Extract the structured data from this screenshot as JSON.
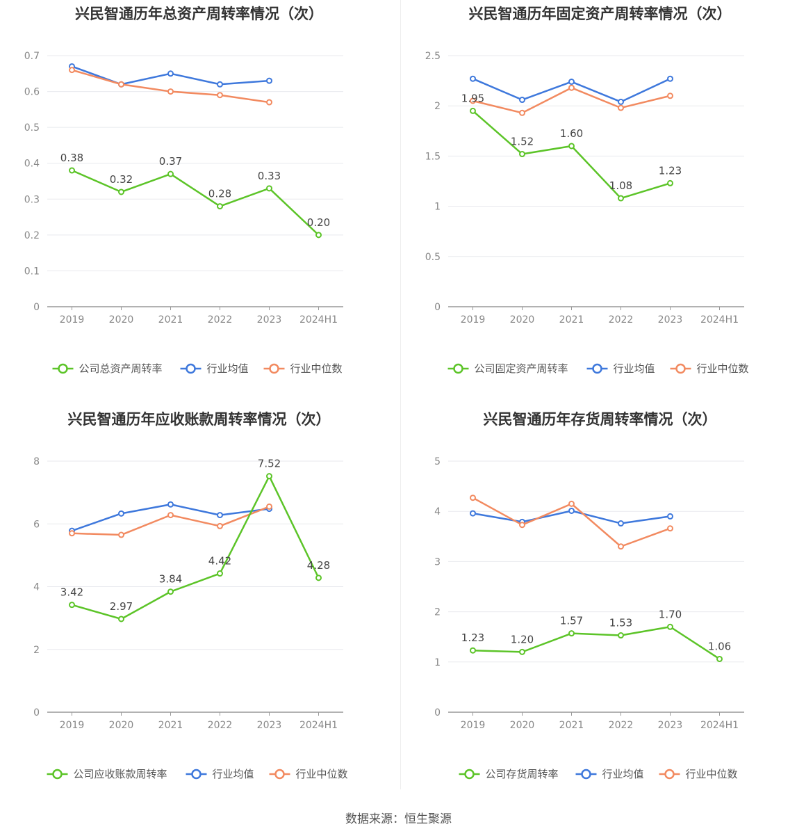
{
  "source": "数据来源：恒生聚源",
  "colors": {
    "company": "#5cc428",
    "mean": "#3e78dc",
    "median": "#f28a60",
    "grid": "#e8e9ee",
    "axis": "#999999",
    "tick": "#888888"
  },
  "chart_data": [
    {
      "type": "line",
      "title": "兴民智通历年总资产周转率情况（次）",
      "categories": [
        "2019",
        "2020",
        "2021",
        "2022",
        "2023",
        "2024H1"
      ],
      "ylim": [
        0,
        0.7
      ],
      "yticks": [
        "0",
        "0.1",
        "0.2",
        "0.3",
        "0.4",
        "0.5",
        "0.6",
        "0.7"
      ],
      "series": [
        {
          "name": "公司总资产周转率",
          "values": [
            0.38,
            0.32,
            0.37,
            0.28,
            0.33,
            0.2
          ],
          "labels": [
            "0.38",
            "0.32",
            "0.37",
            "0.28",
            "0.33",
            "0.20"
          ]
        },
        {
          "name": "行业均值",
          "values": [
            0.67,
            0.62,
            0.65,
            0.62,
            0.63,
            null
          ]
        },
        {
          "name": "行业中位数",
          "values": [
            0.66,
            0.62,
            0.6,
            0.59,
            0.57,
            null
          ]
        }
      ]
    },
    {
      "type": "line",
      "title": "兴民智通历年固定资产周转率情况（次）",
      "categories": [
        "2019",
        "2020",
        "2021",
        "2022",
        "2023",
        "2024H1"
      ],
      "ylim": [
        0,
        2.5
      ],
      "yticks": [
        "0",
        "0.5",
        "1",
        "1.5",
        "2",
        "2.5"
      ],
      "series": [
        {
          "name": "公司固定资产周转率",
          "values": [
            1.95,
            1.52,
            1.6,
            1.08,
            1.23,
            null
          ],
          "labels": [
            "1.95",
            "1.52",
            "1.60",
            "1.08",
            "1.23",
            ""
          ]
        },
        {
          "name": "行业均值",
          "values": [
            2.27,
            2.06,
            2.24,
            2.04,
            2.27,
            null
          ]
        },
        {
          "name": "行业中位数",
          "values": [
            2.05,
            1.93,
            2.18,
            1.98,
            2.1,
            null
          ]
        }
      ]
    },
    {
      "type": "line",
      "title": "兴民智通历年应收账款周转率情况（次）",
      "categories": [
        "2019",
        "2020",
        "2021",
        "2022",
        "2023",
        "2024H1"
      ],
      "ylim": [
        0,
        8
      ],
      "yticks": [
        "0",
        "2",
        "4",
        "6",
        "8"
      ],
      "series": [
        {
          "name": "公司应收账款周转率",
          "values": [
            3.42,
            2.97,
            3.84,
            4.42,
            7.52,
            4.28
          ],
          "labels": [
            "3.42",
            "2.97",
            "3.84",
            "4.42",
            "7.52",
            "4.28"
          ]
        },
        {
          "name": "行业均值",
          "values": [
            5.78,
            6.33,
            6.62,
            6.28,
            6.48,
            null
          ]
        },
        {
          "name": "行业中位数",
          "values": [
            5.7,
            5.65,
            6.28,
            5.93,
            6.55,
            null
          ]
        }
      ]
    },
    {
      "type": "line",
      "title": "兴民智通历年存货周转率情况（次）",
      "categories": [
        "2019",
        "2020",
        "2021",
        "2022",
        "2023",
        "2024H1"
      ],
      "ylim": [
        0,
        5
      ],
      "yticks": [
        "0",
        "1",
        "2",
        "3",
        "4",
        "5"
      ],
      "series": [
        {
          "name": "公司存货周转率",
          "values": [
            1.23,
            1.2,
            1.57,
            1.53,
            1.7,
            1.06
          ],
          "labels": [
            "1.23",
            "1.20",
            "1.57",
            "1.53",
            "1.70",
            "1.06"
          ]
        },
        {
          "name": "行业均值",
          "values": [
            3.96,
            3.79,
            4.01,
            3.76,
            3.9,
            null
          ]
        },
        {
          "name": "行业中位数",
          "values": [
            4.27,
            3.73,
            4.15,
            3.3,
            3.66,
            null
          ]
        }
      ]
    }
  ]
}
